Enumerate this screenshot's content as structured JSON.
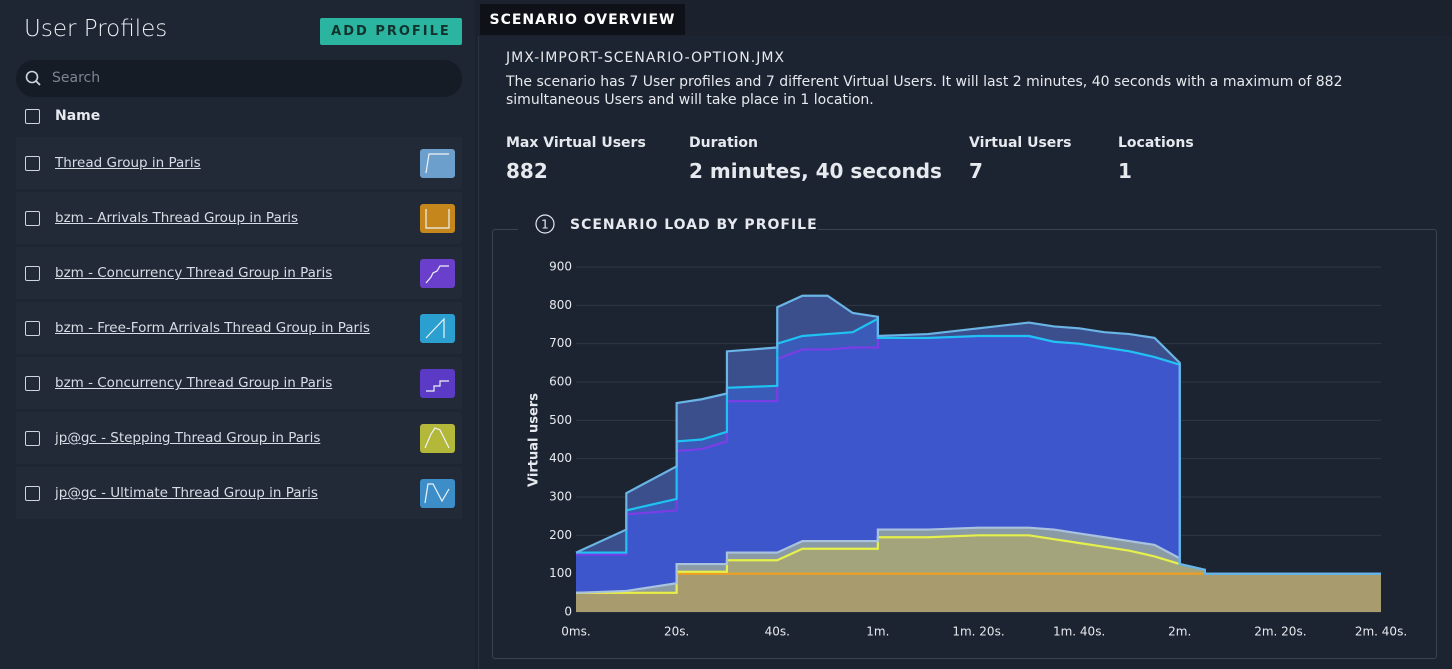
{
  "sidebar": {
    "title": "User Profiles",
    "add_button": "ADD PROFILE",
    "search_placeholder": "Search",
    "column_header": "Name",
    "profiles": [
      {
        "name": "Thread Group in Paris",
        "color": "#6d9fcc"
      },
      {
        "name": "bzm - Arrivals Thread Group in Paris",
        "color": "#c5861c"
      },
      {
        "name": "bzm - Concurrency Thread Group in Paris",
        "color": "#6a3fcb"
      },
      {
        "name": "bzm - Free-Form Arrivals Thread Group in Paris",
        "color": "#2b9fd0"
      },
      {
        "name": "bzm - Concurrency Thread Group in Paris",
        "color": "#5b3bc6"
      },
      {
        "name": "jp@gc - Stepping Thread Group in Paris",
        "color": "#b4b83a"
      },
      {
        "name": "jp@gc - Ultimate Thread Group in Paris",
        "color": "#3d8dc8"
      }
    ]
  },
  "tab": "SCENARIO OVERVIEW",
  "scenario": {
    "file": "JMX-IMPORT-SCENARIO-OPTION.JMX",
    "description": "The scenario has 7 User profiles and 7 different Virtual Users. It will last 2 minutes, 40 seconds with a maximum of 882 simultaneous Users and will take place in 1 location.",
    "stats": [
      {
        "label": "Max Virtual Users",
        "value": 882
      },
      {
        "label": "Duration",
        "value": "2 minutes, 40 seconds"
      },
      {
        "label": "Virtual Users",
        "value": 7
      },
      {
        "label": "Locations",
        "value": 1
      }
    ]
  },
  "chart_data": {
    "type": "area",
    "stacked": true,
    "section_number": "1",
    "title": "SCENARIO LOAD BY PROFILE",
    "y_label": "Virtual users",
    "x": [
      0,
      10,
      10,
      20,
      20,
      25,
      30,
      30,
      40,
      40,
      45,
      50,
      55,
      60,
      60,
      70,
      80,
      90,
      95,
      100,
      105,
      110,
      115,
      120,
      120,
      125,
      125,
      160
    ],
    "xlim": [
      0,
      160
    ],
    "xticks": [
      {
        "value": 0,
        "label": "0ms."
      },
      {
        "value": 20,
        "label": "20s."
      },
      {
        "value": 40,
        "label": "40s."
      },
      {
        "value": 60,
        "label": "1m."
      },
      {
        "value": 80,
        "label": "1m. 20s."
      },
      {
        "value": 100,
        "label": "1m. 40s."
      },
      {
        "value": 120,
        "label": "2m."
      },
      {
        "value": 140,
        "label": "2m. 20s."
      },
      {
        "value": 160,
        "label": "2m. 40s."
      }
    ],
    "ylim": [
      0,
      900
    ],
    "yticks": [
      0,
      100,
      200,
      300,
      400,
      500,
      600,
      700,
      800,
      900
    ],
    "grid": true,
    "series": [
      {
        "color": "#f0a01e",
        "fill": "#a89c6f",
        "values": [
          50,
          50,
          50,
          50,
          100,
          100,
          100,
          100,
          100,
          100,
          100,
          100,
          100,
          100,
          100,
          100,
          100,
          100,
          100,
          100,
          100,
          100,
          100,
          100,
          100,
          100,
          100,
          100
        ]
      },
      {
        "color": "#e6f04a",
        "fill": "#a3a47c",
        "values": [
          0,
          0,
          0,
          0,
          5,
          5,
          5,
          35,
          35,
          35,
          65,
          65,
          65,
          65,
          95,
          95,
          100,
          100,
          90,
          80,
          70,
          60,
          45,
          25,
          25,
          10,
          0,
          0
        ]
      },
      {
        "color": "#a9c2de",
        "fill": "#8a9ba6",
        "values": [
          0,
          5,
          5,
          25,
          20,
          20,
          20,
          20,
          20,
          20,
          20,
          20,
          20,
          20,
          20,
          20,
          20,
          20,
          25,
          25,
          25,
          25,
          30,
          15,
          0,
          0,
          0,
          0
        ]
      },
      {
        "color": "#7b3ee6",
        "fill": "#3d56cc",
        "values": [
          100,
          95,
          200,
          190,
          295,
          300,
          320,
          395,
          395,
          505,
          500,
          500,
          505,
          505,
          500,
          500,
          500,
          500,
          490,
          495,
          495,
          495,
          490,
          505,
          0,
          0,
          0,
          0
        ]
      },
      {
        "color": "#1fc3f2",
        "fill": "#3a5bb8",
        "values": [
          5,
          5,
          10,
          30,
          25,
          25,
          25,
          35,
          40,
          40,
          35,
          40,
          40,
          75,
          0,
          0,
          0,
          0,
          0,
          0,
          0,
          0,
          0,
          0,
          0,
          0,
          0,
          0
        ]
      },
      {
        "color": "#6ab4e6",
        "fill": "#3a4f8c",
        "values": [
          0,
          60,
          45,
          85,
          100,
          105,
          100,
          95,
          100,
          95,
          105,
          100,
          50,
          5,
          5,
          10,
          20,
          35,
          40,
          40,
          40,
          45,
          50,
          5,
          0,
          0,
          0,
          0
        ]
      }
    ]
  }
}
